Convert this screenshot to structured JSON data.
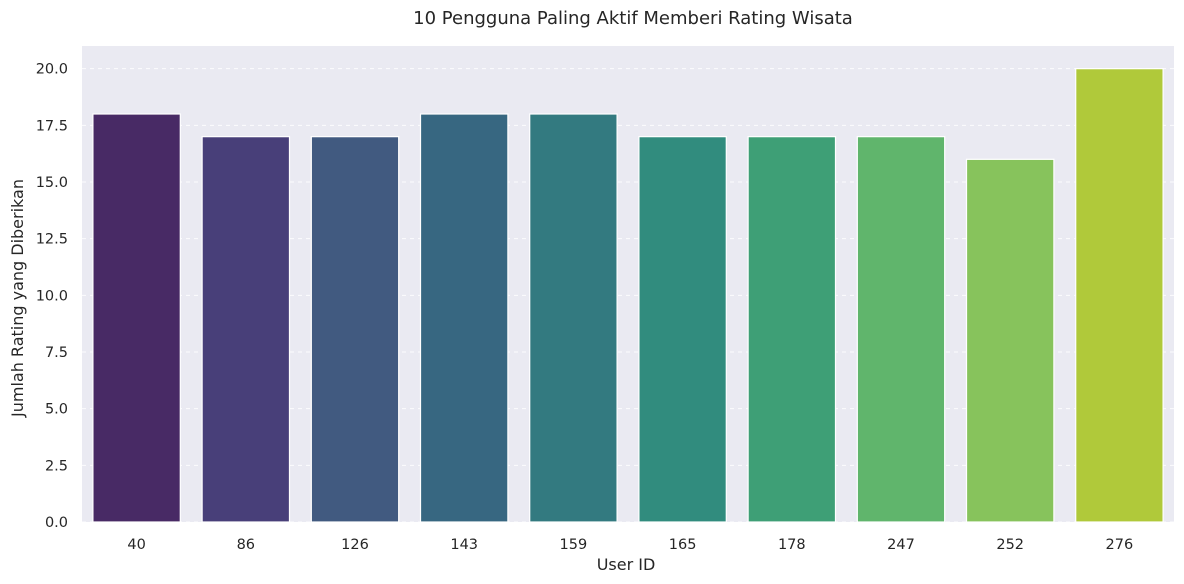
{
  "chart_data": {
    "type": "bar",
    "title": "10 Pengguna Paling Aktif Memberi Rating Wisata",
    "xlabel": "User ID",
    "ylabel": "Jumlah Rating yang Diberikan",
    "categories": [
      "40",
      "86",
      "126",
      "143",
      "159",
      "165",
      "178",
      "247",
      "252",
      "276"
    ],
    "values": [
      18,
      17,
      17,
      18,
      18,
      17,
      17,
      17,
      16,
      20
    ],
    "colors": [
      "#482a65",
      "#483f79",
      "#415a80",
      "#376781",
      "#337a80",
      "#318c7e",
      "#349c77",
      "#3ea076",
      "#60b36c",
      "#87c35c",
      "#b0c93a"
    ],
    "bar_colors": [
      "#482a65",
      "#483f79",
      "#415a80",
      "#376781",
      "#337a80",
      "#318c7e",
      "#3e9f76",
      "#60b56c",
      "#87c35c",
      "#b0c93a"
    ],
    "yticks": [
      "0.0",
      "2.5",
      "5.0",
      "7.5",
      "10.0",
      "12.5",
      "15.0",
      "17.5",
      "20.0"
    ],
    "ylim": [
      0,
      21
    ],
    "grid": "y-dashed",
    "background": "#eaeaf2"
  }
}
